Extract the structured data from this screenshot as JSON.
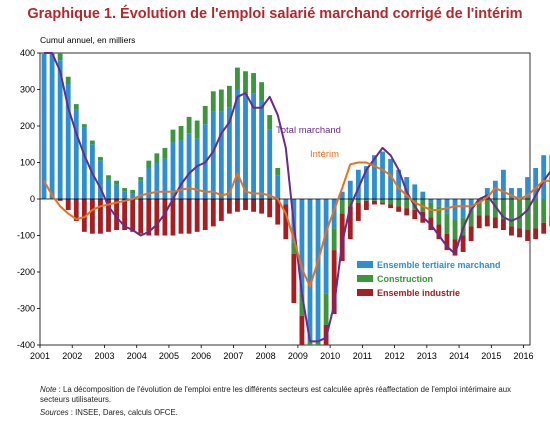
{
  "chart_data": {
    "type": "bar",
    "title": "Graphique 1. Évolution de l'emploi salarié marchand corrigé de l'intérim",
    "ylabel": "Cumul annuel, en milliers",
    "ylim": [
      -400,
      400
    ],
    "yticks": [
      400,
      300,
      200,
      100,
      0,
      -100,
      -200,
      -300,
      -400
    ],
    "x_start": 2001.0,
    "x_step": 0.25,
    "xticks": [
      "2001",
      "2002",
      "2003",
      "2004",
      "2005",
      "2006",
      "2007",
      "2008",
      "2009",
      "2010",
      "2011",
      "2012",
      "2013",
      "2014",
      "2015",
      "2016"
    ],
    "legend_position": "center-right",
    "series": [
      {
        "name": "Ensemble tertiaire marchand",
        "kind": "bar",
        "color": "#2e8fd0",
        "values": [
          400,
          400,
          380,
          315,
          245,
          195,
          150,
          105,
          55,
          40,
          20,
          15,
          50,
          85,
          100,
          110,
          155,
          160,
          180,
          165,
          205,
          240,
          240,
          250,
          300,
          290,
          290,
          270,
          190,
          65,
          -15,
          -120,
          -260,
          -390,
          -390,
          -260,
          -80,
          20,
          50,
          80,
          90,
          120,
          130,
          110,
          80,
          60,
          40,
          20,
          -10,
          -20,
          -40,
          -55,
          -50,
          -30,
          0,
          30,
          50,
          80,
          30,
          30,
          60,
          85,
          120,
          120,
          135
        ]
      },
      {
        "name": "Construction",
        "kind": "bar",
        "color": "#3c963c",
        "values": [
          45,
          50,
          30,
          20,
          15,
          10,
          10,
          10,
          10,
          10,
          10,
          10,
          10,
          20,
          25,
          30,
          35,
          40,
          45,
          50,
          50,
          55,
          60,
          60,
          60,
          60,
          55,
          50,
          40,
          20,
          0,
          -30,
          -60,
          -90,
          -90,
          -85,
          -60,
          -40,
          -20,
          -10,
          -5,
          -5,
          -10,
          -15,
          -20,
          -25,
          -30,
          -35,
          -40,
          -50,
          -55,
          -55,
          -50,
          -45,
          -45,
          -45,
          -50,
          -55,
          -75,
          -80,
          -85,
          -80,
          -65,
          -45,
          -30
        ]
      },
      {
        "name": "Ensemble industrie",
        "kind": "bar",
        "color": "#a41e22",
        "values": [
          110,
          30,
          -5,
          -30,
          -60,
          -90,
          -95,
          -95,
          -90,
          -85,
          -85,
          -90,
          -95,
          -100,
          -100,
          -100,
          -100,
          -95,
          -95,
          -90,
          -85,
          -75,
          -60,
          -40,
          -35,
          -30,
          -35,
          -40,
          -50,
          -70,
          -95,
          -135,
          -175,
          -210,
          -230,
          -210,
          -175,
          -130,
          -90,
          -50,
          -25,
          -10,
          -5,
          -10,
          -15,
          -20,
          -25,
          -30,
          -35,
          -40,
          -45,
          -45,
          -45,
          -40,
          -35,
          -30,
          -30,
          -30,
          -25,
          -25,
          -30,
          -30,
          -30,
          -30,
          -30
        ]
      },
      {
        "name": "Total marchand",
        "kind": "line",
        "color": "#6a2a8c",
        "values": [
          450,
          450,
          350,
          250,
          180,
          120,
          70,
          30,
          -20,
          -50,
          -75,
          -85,
          -100,
          -90,
          -70,
          -40,
          0,
          40,
          70,
          90,
          100,
          130,
          180,
          210,
          280,
          290,
          250,
          250,
          280,
          230,
          140,
          -70,
          -260,
          -390,
          -390,
          -380,
          -290,
          -120,
          -20,
          30,
          80,
          110,
          140,
          120,
          80,
          20,
          -20,
          -50,
          -70,
          -100,
          -130,
          -150,
          -80,
          -30,
          0,
          10,
          -20,
          -50,
          -60,
          -50,
          -30,
          10,
          50,
          80,
          100
        ]
      },
      {
        "name": "Intérim",
        "kind": "line",
        "color": "#e8701f",
        "values": [
          50,
          10,
          -20,
          -40,
          -55,
          -50,
          -30,
          -20,
          -15,
          -10,
          -5,
          0,
          10,
          15,
          20,
          20,
          20,
          25,
          30,
          25,
          20,
          20,
          10,
          15,
          70,
          20,
          15,
          15,
          10,
          0,
          -40,
          -110,
          -190,
          -240,
          -170,
          -90,
          -30,
          30,
          95,
          100,
          100,
          90,
          80,
          65,
          30,
          10,
          -10,
          -20,
          -30,
          -30,
          -25,
          -20,
          -20,
          -20,
          -10,
          5,
          30,
          20,
          10,
          0,
          10,
          30,
          50,
          50,
          55
        ]
      }
    ],
    "annotations": [
      "Total marchand",
      "Intérim"
    ]
  },
  "note_label": "Note",
  "note_text": " : La décomposition de l'évolution de l'emploi entre les différents secteurs est calculée après réaffectation de l'emploi intérimaire aux secteurs utilisateurs.",
  "sources_label": "Sources",
  "sources_text": " : INSEE, Dares, calculs OFCE."
}
